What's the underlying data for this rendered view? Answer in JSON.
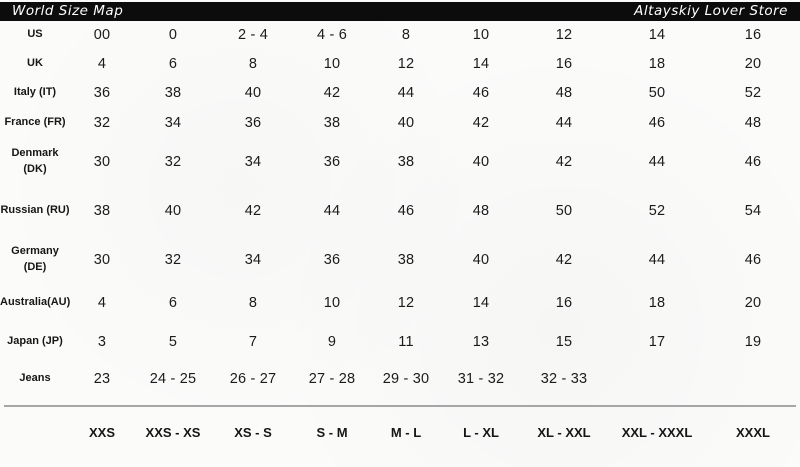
{
  "header": {
    "title": "World Size Map",
    "store": "Altayskiy Lover Store"
  },
  "colors": {
    "titlebar_bg": "#0c0c0c",
    "titlebar_text": "#ffffff",
    "body_text": "#1b1b1b",
    "divider": "#a6a6a6",
    "background": "#fbfbfa"
  },
  "chart_data": {
    "type": "table",
    "title": "World Size Map",
    "store": "Altayskiy Lover Store",
    "rows": [
      {
        "label": "US",
        "values": [
          "00",
          "0",
          "2 - 4",
          "4 - 6",
          "8",
          "10",
          "12",
          "14",
          "16"
        ]
      },
      {
        "label": "UK",
        "values": [
          "4",
          "6",
          "8",
          "10",
          "12",
          "14",
          "16",
          "18",
          "20"
        ]
      },
      {
        "label": "Italy (IT)",
        "values": [
          "36",
          "38",
          "40",
          "42",
          "44",
          "46",
          "48",
          "50",
          "52"
        ]
      },
      {
        "label": "France (FR)",
        "values": [
          "32",
          "34",
          "36",
          "38",
          "40",
          "42",
          "44",
          "46",
          "48"
        ]
      },
      {
        "label": "Denmark (DK)",
        "label_lines": [
          "Denmark",
          "(DK)"
        ],
        "values": [
          "30",
          "32",
          "34",
          "36",
          "38",
          "40",
          "42",
          "44",
          "46"
        ]
      },
      {
        "label": "Russian (RU)",
        "values": [
          "38",
          "40",
          "42",
          "44",
          "46",
          "48",
          "50",
          "52",
          "54"
        ]
      },
      {
        "label": "Germany (DE)",
        "label_lines": [
          "Germany",
          "(DE)"
        ],
        "values": [
          "30",
          "32",
          "34",
          "36",
          "38",
          "40",
          "42",
          "44",
          "46"
        ]
      },
      {
        "label": "Australia(AU)",
        "values": [
          "4",
          "6",
          "8",
          "10",
          "12",
          "14",
          "16",
          "18",
          "20"
        ]
      },
      {
        "label": "Japan (JP)",
        "values": [
          "3",
          "5",
          "7",
          "9",
          "11",
          "13",
          "15",
          "17",
          "19"
        ]
      },
      {
        "label": "Jeans",
        "values": [
          "23",
          "24 - 25",
          "26 - 27",
          "27 - 28",
          "29 - 30",
          "31 - 32",
          "32 - 33",
          "",
          ""
        ]
      }
    ],
    "footer_sizes": [
      "XXS",
      "XXS - XS",
      "XS - S",
      "S - M",
      "M - L",
      "L - XL",
      "XL - XXL",
      "XXL - XXXL",
      "XXXL"
    ]
  }
}
